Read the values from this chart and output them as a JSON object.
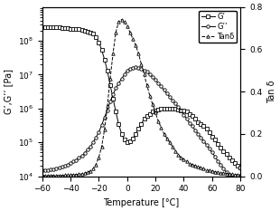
{
  "title": "",
  "xlabel": "Temperature [°C]",
  "ylabel_left": "G’,G’’ [Pa]",
  "ylabel_right": "Tan δ",
  "xlim": [
    -60,
    80
  ],
  "ylim_log": [
    10000.0,
    1000000000.0
  ],
  "ylim_right": [
    0.0,
    0.8
  ],
  "xticks": [
    -60,
    -40,
    -20,
    0,
    20,
    40,
    60,
    80
  ],
  "yticks_left": [
    10000.0,
    100000.0,
    1000000.0,
    10000000.0,
    100000000.0
  ],
  "yticks_right": [
    0.0,
    0.2,
    0.4,
    0.6,
    0.8
  ],
  "legend_labels": [
    "G’",
    "G’’",
    "Tanδ"
  ],
  "background_color": "#ffffff",
  "G_prime": {
    "x": [
      -60,
      -58,
      -56,
      -54,
      -52,
      -50,
      -48,
      -46,
      -44,
      -42,
      -40,
      -38,
      -36,
      -34,
      -32,
      -30,
      -28,
      -26,
      -24,
      -22,
      -20,
      -18,
      -16,
      -14,
      -12,
      -10,
      -8,
      -6,
      -4,
      -2,
      0,
      2,
      4,
      6,
      8,
      10,
      12,
      14,
      16,
      18,
      20,
      22,
      24,
      26,
      28,
      30,
      32,
      34,
      36,
      38,
      40,
      42,
      44,
      46,
      48,
      50,
      52,
      54,
      56,
      58,
      60,
      62,
      64,
      66,
      68,
      70,
      72,
      74,
      76,
      78,
      80
    ],
    "y": [
      260000000.0,
      260000000.0,
      250000000.0,
      250000000.0,
      250000000.0,
      250000000.0,
      250000000.0,
      240000000.0,
      240000000.0,
      240000000.0,
      230000000.0,
      230000000.0,
      220000000.0,
      220000000.0,
      210000000.0,
      200000000.0,
      190000000.0,
      180000000.0,
      160000000.0,
      130000000.0,
      90000000.0,
      55000000.0,
      28000000.0,
      13000000.0,
      5000000.0,
      2000000.0,
      800000.0,
      350000.0,
      180000.0,
      120000.0,
      100000.0,
      110000.0,
      130000.0,
      180000.0,
      250000.0,
      350000.0,
      500000.0,
      600000.0,
      700000.0,
      800000.0,
      900000.0,
      950000.0,
      1000000.0,
      1000000.0,
      1000000.0,
      1000000.0,
      1000000.0,
      1000000.0,
      950000.0,
      900000.0,
      850000.0,
      800000.0,
      700000.0,
      600000.0,
      500000.0,
      400000.0,
      350000.0,
      300000.0,
      250000.0,
      200000.0,
      150000.0,
      120000.0,
      90000.0,
      70000.0,
      55000.0,
      45000.0,
      35000.0,
      30000.0,
      25000.0,
      20000.0,
      18000.0
    ]
  },
  "G_dprime": {
    "x": [
      -60,
      -58,
      -56,
      -54,
      -52,
      -50,
      -48,
      -46,
      -44,
      -42,
      -40,
      -38,
      -36,
      -34,
      -32,
      -30,
      -28,
      -26,
      -24,
      -22,
      -20,
      -18,
      -16,
      -14,
      -12,
      -10,
      -8,
      -6,
      -4,
      -2,
      0,
      2,
      4,
      6,
      8,
      10,
      12,
      14,
      16,
      18,
      20,
      22,
      24,
      26,
      28,
      30,
      32,
      34,
      36,
      38,
      40,
      42,
      44,
      46,
      48,
      50,
      52,
      54,
      56,
      58,
      60,
      62,
      64,
      66,
      68,
      70,
      72,
      74,
      76,
      78,
      80
    ],
    "y": [
      15000.0,
      15000.0,
      15000.0,
      16000.0,
      16000.0,
      17000.0,
      18000.0,
      19000.0,
      20000.0,
      22000.0,
      24000.0,
      27000.0,
      30000.0,
      35000.0,
      40000.0,
      48000.0,
      60000.0,
      75000.0,
      100000.0,
      140000.0,
      200000.0,
      320000.0,
      550000.0,
      900000.0,
      1600000.0,
      2600000.0,
      4000000.0,
      5500000.0,
      7500000.0,
      10000000.0,
      13000000.0,
      15000000.0,
      16000000.0,
      16500000.0,
      16000000.0,
      15000000.0,
      13500000.0,
      12000000.0,
      10000000.0,
      8500000.0,
      7000000.0,
      5500000.0,
      4500000.0,
      3500000.0,
      2800000.0,
      2200000.0,
      1700000.0,
      1400000.0,
      1100000.0,
      850000.0,
      650000.0,
      500000.0,
      380000.0,
      300000.0,
      230000.0,
      180000.0,
      140000.0,
      110000.0,
      85000.0,
      65000.0,
      50000.0,
      38000.0,
      28000.0,
      22000.0,
      17000.0,
      13000.0,
      11000.0,
      9000.0,
      7500.0,
      6500.0,
      5500.0
    ]
  },
  "TanD": {
    "x": [
      -60,
      -58,
      -56,
      -54,
      -52,
      -50,
      -48,
      -46,
      -44,
      -42,
      -40,
      -38,
      -36,
      -34,
      -32,
      -30,
      -28,
      -26,
      -24,
      -22,
      -20,
      -18,
      -16,
      -14,
      -12,
      -10,
      -8,
      -6,
      -4,
      -2,
      0,
      2,
      4,
      6,
      8,
      10,
      12,
      14,
      16,
      18,
      20,
      22,
      24,
      26,
      28,
      30,
      32,
      34,
      36,
      38,
      40,
      42,
      44,
      46,
      48,
      50,
      52,
      54,
      56,
      58,
      60,
      62,
      64,
      66,
      68,
      70,
      72,
      74,
      76,
      78,
      80
    ],
    "y": [
      0.003,
      0.003,
      0.003,
      0.003,
      0.004,
      0.004,
      0.004,
      0.004,
      0.005,
      0.005,
      0.006,
      0.007,
      0.008,
      0.009,
      0.011,
      0.014,
      0.018,
      0.025,
      0.035,
      0.055,
      0.09,
      0.14,
      0.22,
      0.33,
      0.46,
      0.58,
      0.68,
      0.73,
      0.74,
      0.73,
      0.71,
      0.68,
      0.65,
      0.62,
      0.58,
      0.53,
      0.48,
      0.43,
      0.38,
      0.34,
      0.3,
      0.26,
      0.23,
      0.2,
      0.18,
      0.16,
      0.14,
      0.12,
      0.1,
      0.09,
      0.08,
      0.07,
      0.06,
      0.055,
      0.05,
      0.045,
      0.04,
      0.035,
      0.03,
      0.027,
      0.024,
      0.021,
      0.018,
      0.016,
      0.014,
      0.012,
      0.01,
      0.009,
      0.008,
      0.007,
      0.006
    ]
  }
}
